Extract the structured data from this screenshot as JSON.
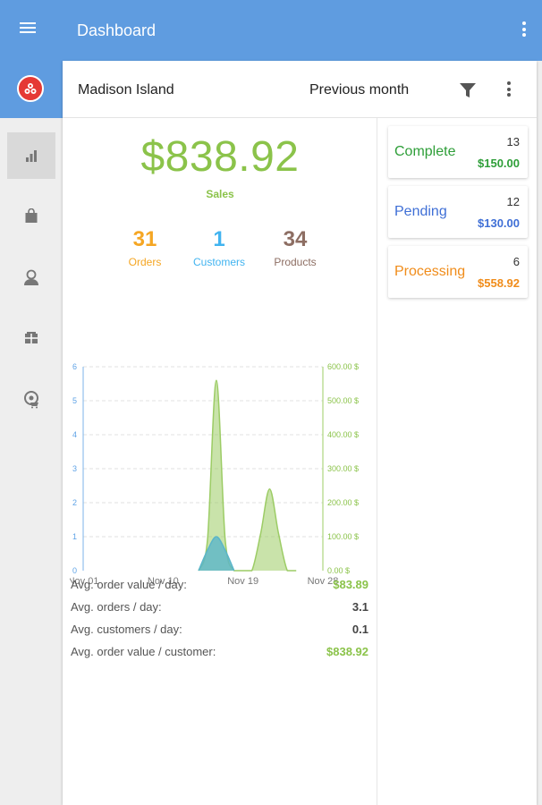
{
  "appbar": {
    "title": "Dashboard"
  },
  "header": {
    "store": "Madison Island",
    "period": "Previous month"
  },
  "sales": {
    "amount": "$838.92",
    "label": "Sales"
  },
  "stats": [
    {
      "value": "31",
      "label": "Orders",
      "color": "#f5a623"
    },
    {
      "value": "1",
      "label": "Customers",
      "color": "#42b4f0"
    },
    {
      "value": "34",
      "label": "Products",
      "color": "#8d6e63"
    }
  ],
  "chart_data": {
    "type": "area",
    "x_ticks": [
      "Nov 01",
      "Nov 10",
      "Nov 19",
      "Nov 28"
    ],
    "y_left_ticks": [
      "0",
      "1",
      "2",
      "3",
      "4",
      "5",
      "6"
    ],
    "y_left_range": [
      0,
      6
    ],
    "y_right_ticks": [
      "0.00 $",
      "100.00 $",
      "200.00 $",
      "300.00 $",
      "400.00 $",
      "500.00 $",
      "600.00 $"
    ],
    "y_right_range": [
      0,
      600
    ],
    "grid": true,
    "series": [
      {
        "axis": "right",
        "color": "#9ccc65",
        "x": [
          "Nov 14",
          "Nov 15",
          "Nov 16",
          "Nov 17",
          "Nov 18",
          "Nov 19",
          "Nov 20",
          "Nov 21",
          "Nov 22",
          "Nov 23",
          "Nov 24",
          "Nov 25"
        ],
        "values": [
          0,
          90,
          560,
          90,
          0,
          0,
          0,
          110,
          240,
          110,
          0,
          0
        ]
      },
      {
        "axis": "left",
        "color": "#5bb5c9",
        "x": [
          "Nov 14",
          "Nov 15",
          "Nov 16",
          "Nov 17",
          "Nov 18"
        ],
        "values": [
          0,
          0.6,
          1,
          0.6,
          0
        ]
      }
    ]
  },
  "averages": [
    {
      "label": "Avg. order value / day:",
      "value": "$83.89",
      "color": "#8bc34a"
    },
    {
      "label": "Avg. orders / day:",
      "value": "3.1",
      "color": "#444444"
    },
    {
      "label": "Avg. customers / day:",
      "value": "0.1",
      "color": "#444444"
    },
    {
      "label": "Avg. order value / customer:",
      "value": "$838.92",
      "color": "#8bc34a"
    }
  ],
  "statuses": [
    {
      "name": "Complete",
      "count": "13",
      "amount": "$150.00",
      "name_color": "#2e9e38",
      "amount_color": "#2e9e38"
    },
    {
      "name": "Pending",
      "count": "12",
      "amount": "$130.00",
      "name_color": "#3f6fd6",
      "amount_color": "#3f6fd6"
    },
    {
      "name": "Processing",
      "count": "6",
      "amount": "$558.92",
      "name_color": "#f08c1a",
      "amount_color": "#f08c1a"
    }
  ],
  "nav": [
    {
      "icon": "bar-chart-icon",
      "active": true
    },
    {
      "icon": "shopping-bag-icon",
      "active": false
    },
    {
      "icon": "customer-icon",
      "active": false
    },
    {
      "icon": "products-box-icon",
      "active": false
    },
    {
      "icon": "cart-settings-icon",
      "active": false
    }
  ],
  "colors": {
    "appbar": "#5f9ce0",
    "logo": "#e53935",
    "sales": "#8bc34a"
  }
}
